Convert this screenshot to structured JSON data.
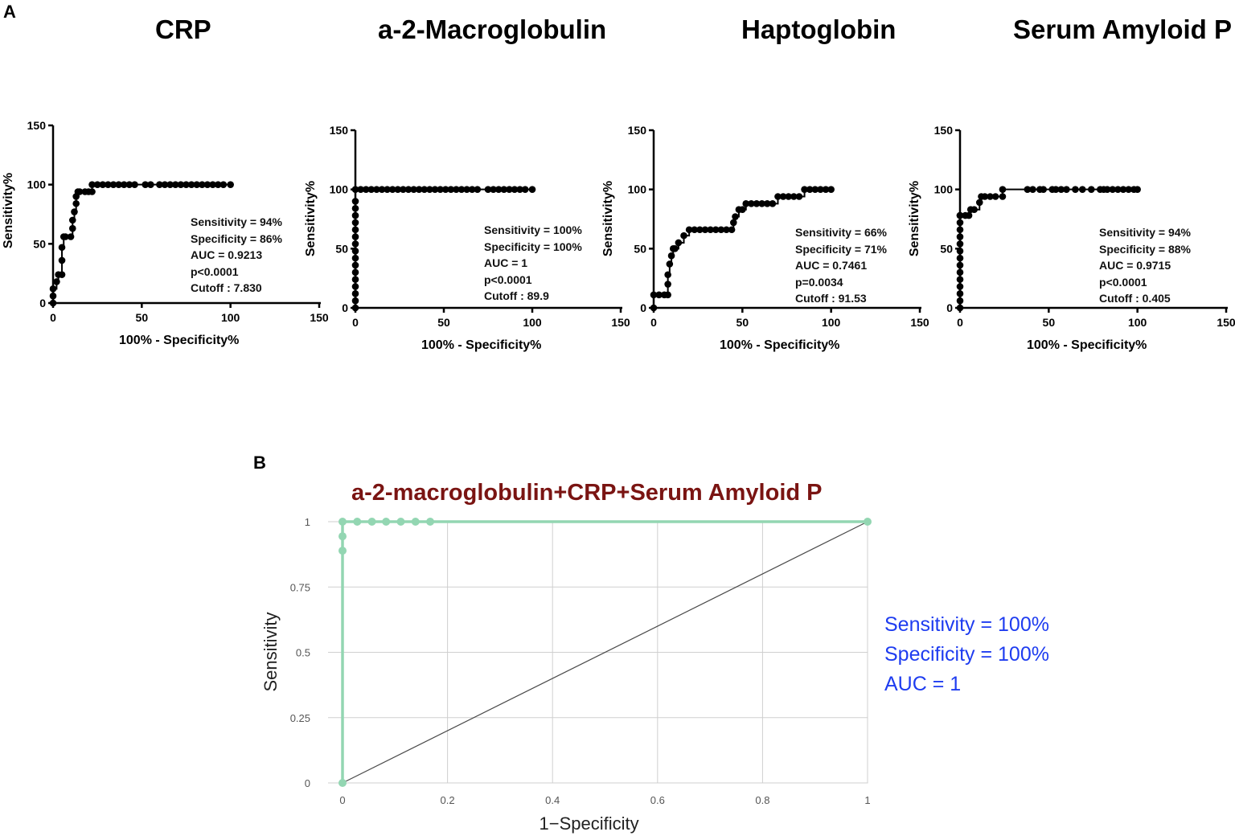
{
  "panel_labels": {
    "a": "A",
    "b": "B"
  },
  "chart_data": [
    {
      "type": "line",
      "title": "CRP",
      "xlabel": "100% - Specificity%",
      "ylabel": "Sensitivity%",
      "xlim": [
        0,
        150
      ],
      "ylim": [
        0,
        150
      ],
      "xticks": [
        "0",
        "50",
        "100",
        "150"
      ],
      "yticks": [
        "0",
        "50",
        "100",
        "150"
      ],
      "x": [
        0,
        0,
        0,
        2,
        3,
        5,
        5,
        5,
        6,
        7,
        10,
        11,
        11,
        12,
        13,
        13,
        14,
        15,
        18,
        20,
        22,
        22,
        25,
        28,
        31,
        34,
        37,
        40,
        43,
        46,
        52,
        55,
        60,
        63,
        66,
        69,
        72,
        75,
        78,
        81,
        84,
        87,
        90,
        93,
        96,
        100
      ],
      "y": [
        0,
        6,
        12,
        18,
        24,
        24,
        36,
        47,
        56,
        56,
        56,
        63,
        70,
        77,
        84,
        90,
        94,
        94,
        94,
        94,
        94,
        100,
        100,
        100,
        100,
        100,
        100,
        100,
        100,
        100,
        100,
        100,
        100,
        100,
        100,
        100,
        100,
        100,
        100,
        100,
        100,
        100,
        100,
        100,
        100,
        100
      ],
      "stats": [
        "Sensitivity = 94%",
        "Specificity = 86%",
        "AUC = 0.9213",
        "p<0.0001",
        "Cutoff : 7.830"
      ]
    },
    {
      "type": "line",
      "title": "a-2-Macroglobulin",
      "xlabel": "100% - Specificity%",
      "ylabel": "Sensitivity%",
      "xlim": [
        0,
        150
      ],
      "ylim": [
        0,
        150
      ],
      "xticks": [
        "0",
        "50",
        "100",
        "150"
      ],
      "yticks": [
        "0",
        "50",
        "100",
        "150"
      ],
      "x": [
        0,
        0,
        0,
        0,
        0,
        0,
        0,
        0,
        0,
        0,
        0,
        0,
        0,
        0,
        0,
        0,
        0,
        3,
        6,
        9,
        12,
        15,
        18,
        21,
        24,
        27,
        30,
        33,
        36,
        39,
        42,
        45,
        48,
        51,
        54,
        57,
        60,
        63,
        66,
        69,
        75,
        78,
        81,
        84,
        87,
        90,
        93,
        96,
        100
      ],
      "y": [
        0,
        6,
        12,
        18,
        24,
        30,
        36,
        42,
        48,
        54,
        60,
        66,
        72,
        78,
        84,
        90,
        100,
        100,
        100,
        100,
        100,
        100,
        100,
        100,
        100,
        100,
        100,
        100,
        100,
        100,
        100,
        100,
        100,
        100,
        100,
        100,
        100,
        100,
        100,
        100,
        100,
        100,
        100,
        100,
        100,
        100,
        100,
        100,
        100
      ],
      "stats": [
        "Sensitivity = 100%",
        "Specificity = 100%",
        "AUC = 1",
        "p<0.0001",
        "Cutoff : 89.9"
      ]
    },
    {
      "type": "line",
      "title": "Haptoglobin",
      "xlabel": "100% - Specificity%",
      "ylabel": "Sensitivity%",
      "xlim": [
        0,
        150
      ],
      "ylim": [
        0,
        150
      ],
      "xticks": [
        "0",
        "50",
        "100",
        "150"
      ],
      "yticks": [
        "0",
        "50",
        "100",
        "150"
      ],
      "x": [
        0,
        0,
        3,
        6,
        8,
        8,
        8,
        9,
        10,
        11,
        12,
        14,
        17,
        20,
        23,
        26,
        29,
        32,
        35,
        38,
        41,
        44,
        45,
        46,
        48,
        50,
        52,
        55,
        58,
        61,
        64,
        67,
        70,
        73,
        76,
        79,
        82,
        85,
        88,
        91,
        94,
        97,
        100
      ],
      "y": [
        0,
        11,
        11,
        11,
        11,
        20,
        28,
        37,
        44,
        50,
        50,
        55,
        61,
        66,
        66,
        66,
        66,
        66,
        66,
        66,
        66,
        66,
        72,
        77,
        83,
        83,
        88,
        88,
        88,
        88,
        88,
        88,
        94,
        94,
        94,
        94,
        94,
        100,
        100,
        100,
        100,
        100,
        100
      ],
      "stats": [
        "Sensitivity = 66%",
        "Specificity = 71%",
        "AUC = 0.7461",
        "p=0.0034",
        "Cutoff : 91.53"
      ]
    },
    {
      "type": "line",
      "title": "Serum Amyloid P",
      "xlabel": "100% - Specificity%",
      "ylabel": "Sensitivity%",
      "xlim": [
        0,
        150
      ],
      "ylim": [
        0,
        150
      ],
      "xticks": [
        "0",
        "50",
        "100",
        "150"
      ],
      "yticks": [
        "0",
        "50",
        "100",
        "150"
      ],
      "x": [
        0,
        0,
        0,
        0,
        0,
        0,
        0,
        0,
        0,
        0,
        0,
        0,
        0,
        0,
        0,
        3,
        5,
        6,
        8,
        11,
        12,
        14,
        17,
        20,
        24,
        24,
        38,
        41,
        45,
        47,
        52,
        54,
        57,
        60,
        65,
        69,
        74,
        79,
        81,
        83,
        86,
        89,
        92,
        95,
        98,
        100
      ],
      "y": [
        0,
        6,
        12,
        18,
        24,
        30,
        36,
        42,
        48,
        54,
        60,
        66,
        72,
        78,
        78,
        78,
        78,
        83,
        83,
        89,
        94,
        94,
        94,
        94,
        94,
        100,
        100,
        100,
        100,
        100,
        100,
        100,
        100,
        100,
        100,
        100,
        100,
        100,
        100,
        100,
        100,
        100,
        100,
        100,
        100,
        100
      ],
      "stats": [
        "Sensitivity = 94%",
        "Specificity = 88%",
        "AUC = 0.9715",
        "p<0.0001",
        "Cutoff : 0.405"
      ]
    },
    {
      "type": "line",
      "title": "a-2-macroglobulin+CRP+Serum Amyloid P",
      "xlabel": "1−Specificity",
      "ylabel": "Sensitivity",
      "xlim": [
        0,
        1
      ],
      "ylim": [
        0,
        1
      ],
      "xticks": [
        "0",
        "0.2",
        "0.4",
        "0.6",
        "0.8",
        "1"
      ],
      "yticks": [
        "0",
        "0.25",
        "0.5",
        "0.75",
        "1"
      ],
      "grid": true,
      "x": [
        0,
        0,
        0,
        0,
        0.028,
        0.056,
        0.083,
        0.111,
        0.139,
        0.167,
        1
      ],
      "y": [
        0,
        0.889,
        0.944,
        1,
        1,
        1,
        1,
        1,
        1,
        1,
        1
      ],
      "reference_line": {
        "x": [
          0,
          1
        ],
        "y": [
          0,
          1
        ]
      },
      "stats": [
        "Sensitivity = 100%",
        "Specificity = 100%",
        "AUC = 1"
      ],
      "colors": {
        "curve": "#93d6b2",
        "reference": "#4a4a4a",
        "title": "#7a1412",
        "stats": "#1e3cf0"
      }
    }
  ]
}
